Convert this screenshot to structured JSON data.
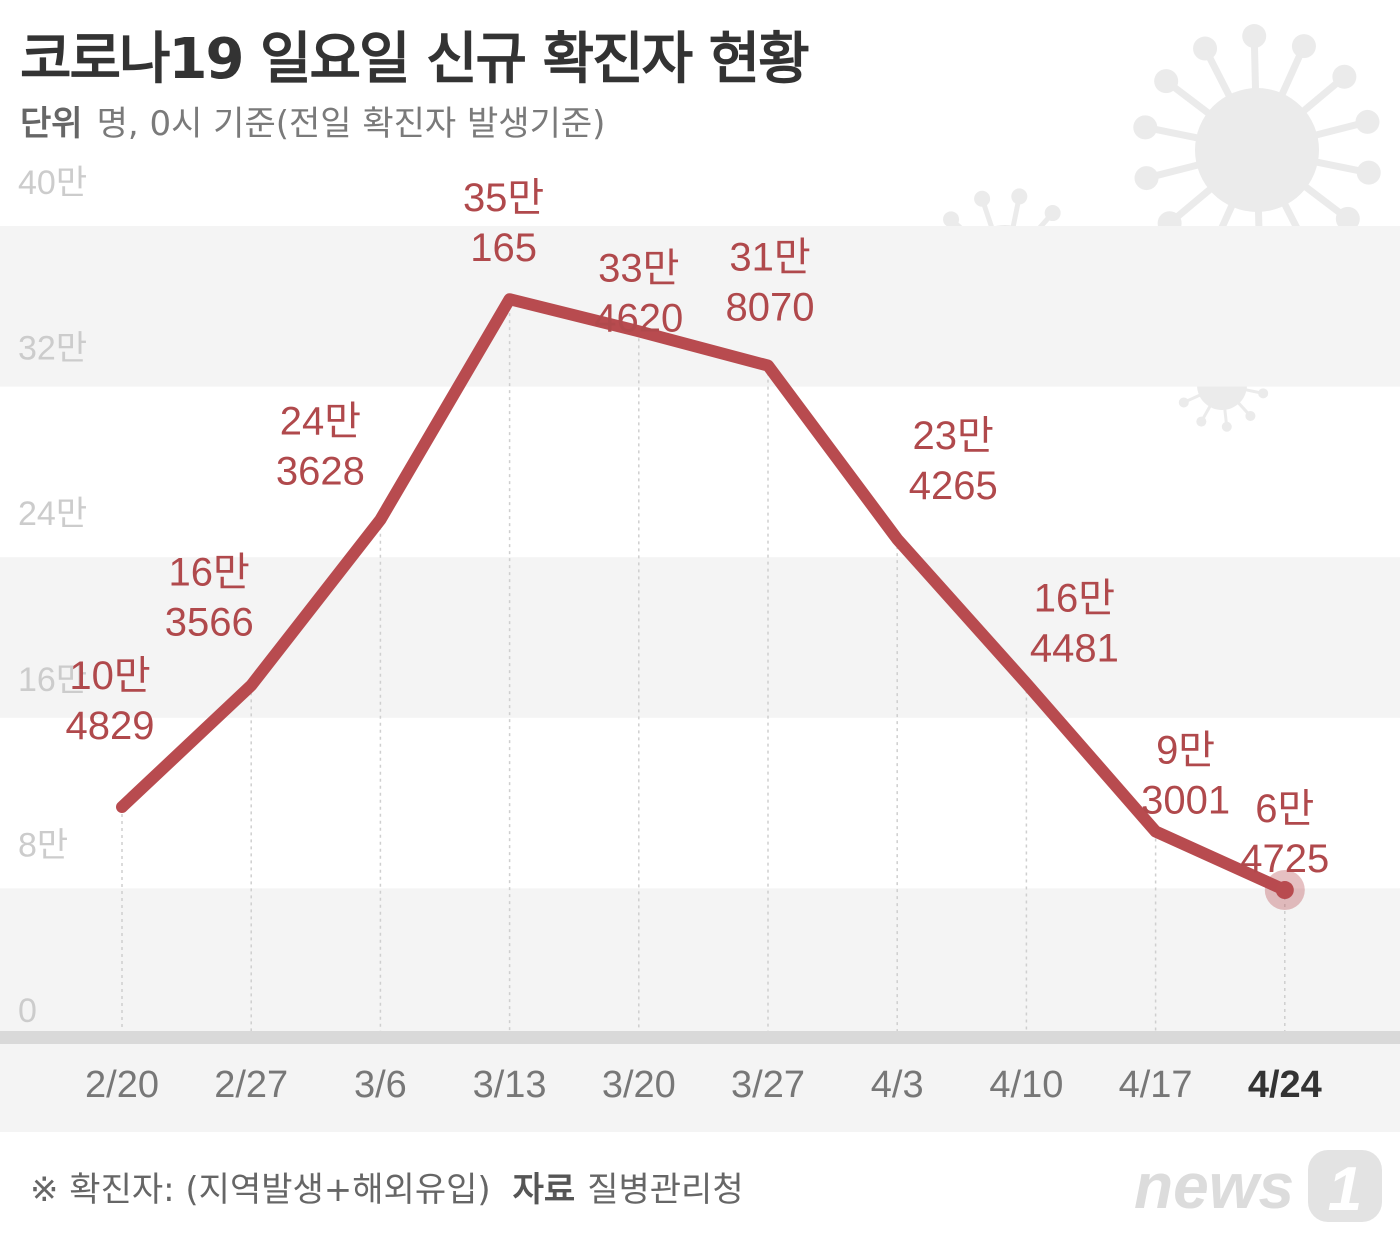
{
  "title": "코로나19 일요일 신규 확진자 현황",
  "subtitle": {
    "unit_label": "단위",
    "unit_text": "명, 0시 기준(전일 확진자 발생기준)"
  },
  "footer": {
    "note": "※ 확진자: (지역발생+해외유입)",
    "source_label": "자료",
    "source_value": "질병관리청",
    "logo_text": "news",
    "logo_number": "1"
  },
  "colors": {
    "line": "#b84b4f",
    "label": "#b0494c",
    "band": "#f4f4f4",
    "axis": "#d9d9d9",
    "tick": "#cccccc",
    "xlabel": "#777777",
    "xlabel_last": "#333333",
    "decor": "#ebebeb"
  },
  "chart_data": {
    "type": "line",
    "title": "코로나19 일요일 신규 확진자 현황",
    "xlabel": "",
    "ylabel": "",
    "ylim": [
      0,
      400000
    ],
    "y_ticks": [
      0,
      80000,
      160000,
      240000,
      320000,
      400000
    ],
    "y_tick_labels": [
      "0",
      "8만",
      "16만",
      "24만",
      "32만",
      "40만"
    ],
    "grid": "alternating horizontal bands",
    "categories": [
      "2/20",
      "2/27",
      "3/6",
      "3/13",
      "3/20",
      "3/27",
      "4/3",
      "4/10",
      "4/17",
      "4/24"
    ],
    "highlight": "4/24",
    "series": [
      {
        "values": [
          104829,
          163566,
          243628,
          350165,
          334620,
          318070,
          234265,
          164481,
          93001,
          64725
        ],
        "labels": [
          [
            "10만",
            "4829"
          ],
          [
            "16만",
            "3566"
          ],
          [
            "24만",
            "3628"
          ],
          [
            "35만",
            "165"
          ],
          [
            "33만",
            "4620"
          ],
          [
            "31만",
            "8070"
          ],
          [
            "23만",
            "4265"
          ],
          [
            "16만",
            "4481"
          ],
          [
            "9만",
            "3001"
          ],
          [
            "6만",
            "4725"
          ]
        ]
      }
    ]
  }
}
